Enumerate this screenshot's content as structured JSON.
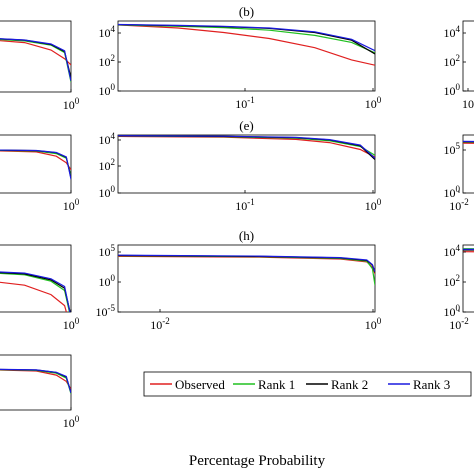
{
  "figure": {
    "xlabel": "Percentage Probability",
    "line_colors": {
      "Observed": "#e02020",
      "Rank 1": "#20c020",
      "Rank 2": "#000000",
      "Rank 3": "#1a1adf"
    }
  },
  "legend": {
    "entries": [
      "Observed",
      "Rank 1",
      "Rank 2",
      "Rank 3"
    ]
  },
  "chart_data": [
    {
      "id": "a-left-top",
      "type": "line",
      "title": "",
      "xscale": "log",
      "yscale": "log",
      "x_tick_labels": [
        "10^0"
      ],
      "y_tick_labels": [],
      "xlim": [
        0.03,
        1
      ],
      "series": [
        {
          "name": "Observed",
          "x": [
            0.03,
            0.2,
            0.5,
            0.8,
            1.0
          ],
          "y": [
            6000,
            3000,
            900,
            220,
            80
          ]
        },
        {
          "name": "Rank 1",
          "x": [
            0.03,
            0.2,
            0.5,
            0.8,
            1.0
          ],
          "y": [
            6500,
            4000,
            2000,
            600,
            5
          ]
        },
        {
          "name": "Rank 2",
          "x": [
            0.03,
            0.2,
            0.5,
            0.8,
            1.0
          ],
          "y": [
            7000,
            4500,
            2200,
            700,
            10
          ]
        },
        {
          "name": "Rank 3",
          "x": [
            0.03,
            0.2,
            0.5,
            0.8,
            1.0
          ],
          "y": [
            7200,
            4600,
            2400,
            800,
            6
          ]
        }
      ]
    },
    {
      "id": "b",
      "type": "line",
      "title": "(b)",
      "xscale": "log",
      "yscale": "log",
      "x_tick_labels": [
        "10^-1",
        "10^0"
      ],
      "y_tick_labels": [
        "10^0",
        "10^2",
        "10^4"
      ],
      "xlim": [
        0.02,
        1
      ],
      "ylim": [
        1,
        10000
      ],
      "series": [
        {
          "name": "Observed",
          "x": [
            0.02,
            0.05,
            0.1,
            0.2,
            0.4,
            0.7,
            1.0
          ],
          "y": [
            6000,
            4000,
            2200,
            1000,
            300,
            60,
            30
          ]
        },
        {
          "name": "Rank 1",
          "x": [
            0.02,
            0.05,
            0.1,
            0.2,
            0.4,
            0.7,
            1.0
          ],
          "y": [
            6000,
            5000,
            4200,
            3000,
            1500,
            600,
            150
          ]
        },
        {
          "name": "Rank 2",
          "x": [
            0.02,
            0.05,
            0.1,
            0.2,
            0.4,
            0.7,
            1.0
          ],
          "y": [
            6200,
            5400,
            4800,
            3800,
            2200,
            800,
            130
          ]
        },
        {
          "name": "Rank 3",
          "x": [
            0.02,
            0.05,
            0.1,
            0.2,
            0.4,
            0.7,
            1.0
          ],
          "y": [
            6300,
            5600,
            5000,
            4000,
            2400,
            900,
            200
          ]
        }
      ]
    },
    {
      "id": "c-right-top",
      "type": "line",
      "title": "",
      "xscale": "log",
      "yscale": "log",
      "x_tick_labels": [
        "10"
      ],
      "y_tick_labels": [
        "10^0",
        "10^2",
        "10^4"
      ],
      "ylim": [
        1,
        10000
      ],
      "series": [
        {
          "name": "Observed",
          "x": [
            0.02,
            0.1
          ],
          "y": [
            5000,
            4500
          ]
        },
        {
          "name": "Rank 1",
          "x": [
            0.02,
            0.1
          ],
          "y": [
            5200,
            4800
          ]
        },
        {
          "name": "Rank 2",
          "x": [
            0.02,
            0.1
          ],
          "y": [
            5400,
            5000
          ]
        },
        {
          "name": "Rank 3",
          "x": [
            0.02,
            0.1
          ],
          "y": [
            5600,
            5200
          ]
        }
      ]
    },
    {
      "id": "d-left-mid",
      "type": "line",
      "title": "",
      "xscale": "log",
      "yscale": "log",
      "x_tick_labels": [
        "10^0"
      ],
      "y_tick_labels": [],
      "xlim": [
        0.03,
        1
      ],
      "series": [
        {
          "name": "Observed",
          "x": [
            0.03,
            0.3,
            0.6,
            0.85,
            1.0
          ],
          "y": [
            5000,
            3500,
            1500,
            400,
            100
          ]
        },
        {
          "name": "Rank 1",
          "x": [
            0.03,
            0.3,
            0.6,
            0.85,
            1.0
          ],
          "y": [
            5200,
            4200,
            2500,
            1000,
            30
          ]
        },
        {
          "name": "Rank 2",
          "x": [
            0.03,
            0.3,
            0.6,
            0.85,
            1.0
          ],
          "y": [
            5300,
            4500,
            3000,
            1200,
            20
          ]
        },
        {
          "name": "Rank 3",
          "x": [
            0.03,
            0.3,
            0.6,
            0.85,
            1.0
          ],
          "y": [
            5400,
            4600,
            3100,
            1300,
            15
          ]
        }
      ]
    },
    {
      "id": "e",
      "type": "line",
      "title": "(e)",
      "xscale": "log",
      "yscale": "log",
      "x_tick_labels": [
        "10^-1",
        "10^0"
      ],
      "y_tick_labels": [
        "10^0",
        "10^2",
        "10^4"
      ],
      "xlim": [
        0.02,
        1
      ],
      "ylim": [
        1,
        10000
      ],
      "series": [
        {
          "name": "Observed",
          "x": [
            0.02,
            0.1,
            0.3,
            0.5,
            0.8,
            1.0
          ],
          "y": [
            8000,
            7000,
            5000,
            3000,
            1000,
            300
          ]
        },
        {
          "name": "Rank 1",
          "x": [
            0.02,
            0.1,
            0.3,
            0.5,
            0.8,
            1.0
          ],
          "y": [
            8500,
            7600,
            6000,
            4000,
            1600,
            400
          ]
        },
        {
          "name": "Rank 2",
          "x": [
            0.02,
            0.1,
            0.3,
            0.5,
            0.8,
            1.0
          ],
          "y": [
            8800,
            8000,
            6600,
            4600,
            1800,
            200
          ]
        },
        {
          "name": "Rank 3",
          "x": [
            0.02,
            0.1,
            0.3,
            0.5,
            0.8,
            1.0
          ],
          "y": [
            9000,
            8200,
            6800,
            4800,
            2000,
            250
          ]
        }
      ]
    },
    {
      "id": "f-right-mid",
      "type": "line",
      "title": "",
      "xscale": "log",
      "yscale": "log",
      "x_tick_labels": [
        "10^-2"
      ],
      "y_tick_labels": [
        "10^0",
        "10^5"
      ],
      "ylim": [
        1,
        100000
      ],
      "series": [
        {
          "name": "Observed",
          "x": [
            0.01,
            0.1
          ],
          "y": [
            20000,
            18000
          ]
        },
        {
          "name": "Rank 1",
          "x": [
            0.01,
            0.1
          ],
          "y": [
            25000,
            22000
          ]
        },
        {
          "name": "Rank 2",
          "x": [
            0.01,
            0.1
          ],
          "y": [
            27000,
            24000
          ]
        },
        {
          "name": "Rank 3",
          "x": [
            0.01,
            0.1
          ],
          "y": [
            28000,
            25000
          ]
        }
      ]
    },
    {
      "id": "g-left-low",
      "type": "line",
      "title": "",
      "xscale": "log",
      "yscale": "log",
      "x_tick_labels": [
        "10^0"
      ],
      "y_tick_labels": [],
      "xlim": [
        0.03,
        1
      ],
      "series": [
        {
          "name": "Observed",
          "x": [
            0.03,
            0.2,
            0.5,
            0.8,
            1.0
          ],
          "y": [
            300,
            100,
            20,
            3,
            0.05
          ]
        },
        {
          "name": "Rank 1",
          "x": [
            0.03,
            0.2,
            0.5,
            0.8,
            1.0
          ],
          "y": [
            1000,
            600,
            200,
            40,
            0.3
          ]
        },
        {
          "name": "Rank 2",
          "x": [
            0.03,
            0.2,
            0.5,
            0.8,
            1.0
          ],
          "y": [
            1100,
            700,
            250,
            60,
            0.5
          ]
        },
        {
          "name": "Rank 3",
          "x": [
            0.03,
            0.2,
            0.5,
            0.8,
            1.0
          ],
          "y": [
            1200,
            800,
            300,
            80,
            0.4
          ]
        }
      ]
    },
    {
      "id": "h",
      "type": "line",
      "title": "(h)",
      "xscale": "log",
      "yscale": "log",
      "x_tick_labels": [
        "10^-2",
        "10^0"
      ],
      "y_tick_labels": [
        "10^-5",
        "10^0",
        "10^5"
      ],
      "xlim": [
        0.006,
        1
      ],
      "ylim": [
        1e-05,
        100000
      ],
      "series": [
        {
          "name": "Observed",
          "x": [
            0.006,
            0.1,
            0.5,
            0.85,
            0.95,
            1.0
          ],
          "y": [
            2000,
            1500,
            800,
            300,
            50,
            5
          ]
        },
        {
          "name": "Rank 1",
          "x": [
            0.006,
            0.1,
            0.5,
            0.85,
            0.95,
            1.0
          ],
          "y": [
            2500,
            1800,
            1000,
            400,
            30,
            0.1
          ]
        },
        {
          "name": "Rank 2",
          "x": [
            0.006,
            0.1,
            0.5,
            0.85,
            0.95,
            1.0
          ],
          "y": [
            2800,
            2000,
            1200,
            500,
            100,
            8
          ]
        },
        {
          "name": "Rank 3",
          "x": [
            0.006,
            0.1,
            0.5,
            0.85,
            0.95,
            1.0
          ],
          "y": [
            3000,
            2200,
            1300,
            600,
            120,
            10
          ]
        }
      ]
    },
    {
      "id": "i-right-low",
      "type": "line",
      "title": "",
      "xscale": "log",
      "yscale": "log",
      "x_tick_labels": [
        "10^-2"
      ],
      "y_tick_labels": [
        "10^0",
        "10^2",
        "10^4"
      ],
      "ylim": [
        1,
        10000
      ],
      "series": [
        {
          "name": "Observed",
          "x": [
            0.01,
            0.1
          ],
          "y": [
            4000,
            3800
          ]
        },
        {
          "name": "Rank 1",
          "x": [
            0.01,
            0.1
          ],
          "y": [
            6000,
            5800
          ]
        },
        {
          "name": "Rank 2",
          "x": [
            0.01,
            0.1
          ],
          "y": [
            5000,
            4800
          ]
        },
        {
          "name": "Rank 3",
          "x": [
            0.01,
            0.1
          ],
          "y": [
            5500,
            5300
          ]
        }
      ]
    },
    {
      "id": "j-left-bottom",
      "type": "line",
      "title": "",
      "xscale": "log",
      "yscale": "log",
      "x_tick_labels": [
        "10^0"
      ],
      "y_tick_labels": [],
      "xlim": [
        0.03,
        1
      ],
      "series": [
        {
          "name": "Observed",
          "x": [
            0.03,
            0.3,
            0.6,
            0.85,
            1.0
          ],
          "y": [
            5000,
            3500,
            1500,
            400,
            80
          ]
        },
        {
          "name": "Rank 1",
          "x": [
            0.03,
            0.3,
            0.6,
            0.85,
            1.0
          ],
          "y": [
            5200,
            4000,
            2200,
            800,
            30
          ]
        },
        {
          "name": "Rank 2",
          "x": [
            0.03,
            0.3,
            0.6,
            0.85,
            1.0
          ],
          "y": [
            5300,
            4300,
            2600,
            1000,
            40
          ]
        },
        {
          "name": "Rank 3",
          "x": [
            0.03,
            0.3,
            0.6,
            0.85,
            1.0
          ],
          "y": [
            5400,
            4400,
            2700,
            1100,
            35
          ]
        }
      ]
    }
  ]
}
